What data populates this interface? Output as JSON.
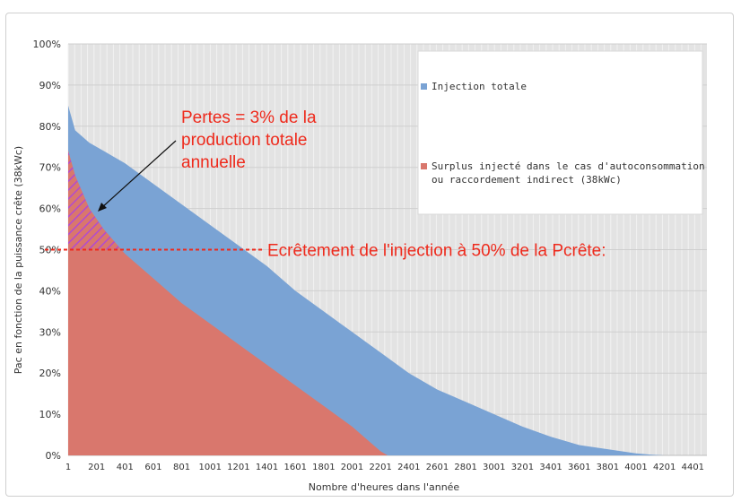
{
  "chart_data": {
    "type": "area",
    "xlabel": "Nombre d'heures dans l'année",
    "ylabel": "Pac en fonction de la puissance crête (38kWc)",
    "xlim": [
      1,
      4500
    ],
    "ylim": [
      0,
      100
    ],
    "y_ticks": [
      "0%",
      "10%",
      "20%",
      "30%",
      "40%",
      "50%",
      "60%",
      "70%",
      "80%",
      "90%",
      "100%"
    ],
    "x_ticks": [
      "1",
      "201",
      "401",
      "601",
      "801",
      "1001",
      "1201",
      "1401",
      "1601",
      "1801",
      "2001",
      "2201",
      "2401",
      "2601",
      "2801",
      "3001",
      "3201",
      "3401",
      "3601",
      "3801",
      "4001",
      "4201",
      "4401"
    ],
    "grid": true,
    "legend_position": "right",
    "series": [
      {
        "name": "Injection totale",
        "color": "#7aa3d4",
        "x": [
          1,
          50,
          150,
          250,
          401,
          601,
          801,
          1001,
          1201,
          1401,
          1601,
          1801,
          2001,
          2201,
          2401,
          2601,
          2801,
          3001,
          3201,
          3401,
          3601,
          3801,
          4001,
          4101,
          4201
        ],
        "y": [
          85,
          79,
          76,
          74,
          71,
          66,
          61,
          56,
          51,
          46,
          40,
          35,
          30,
          25,
          20,
          16,
          13,
          10,
          7,
          4.5,
          2.5,
          1.5,
          0.5,
          0.2,
          0
        ]
      },
      {
        "name": "Surplus injecté dans le cas d'autoconsommation ou raccordement indirect (38kWc)",
        "color": "#d9776d",
        "x": [
          1,
          50,
          150,
          250,
          401,
          601,
          801,
          1001,
          1201,
          1401,
          1601,
          1801,
          2001,
          2101,
          2201,
          2251
        ],
        "y": [
          74,
          68,
          60,
          55,
          49,
          43,
          37,
          32,
          27,
          22,
          17,
          12,
          7,
          4,
          1,
          0
        ]
      }
    ],
    "annotations": {
      "loss_text": [
        "Pertes = 3% de la",
        "production totale",
        "annuelle"
      ],
      "clip_text": "Ecrêtement de l'injection à 50% de la Pcrête:",
      "clip_level": 50,
      "annotation_color": "#ee2a1c"
    }
  }
}
